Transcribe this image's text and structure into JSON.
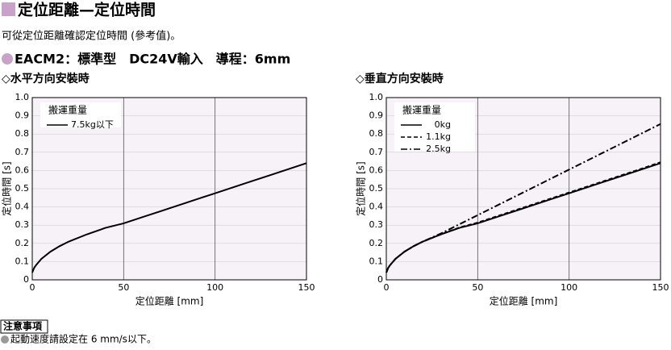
{
  "header": {
    "title": "定位距離—定位時間",
    "subtitle": "可從定位距離確認定位時間 (參考值)。",
    "model": "EACM2：標準型　DC24V輸入　導程：6mm"
  },
  "chart_data": [
    {
      "type": "line",
      "title": "◇水平方向安裝時",
      "xlabel": "定位距離 [mm]",
      "ylabel": "定位時間 [s]",
      "legend_title": "搬運重量",
      "grid": true,
      "x": [
        0,
        1,
        2,
        5,
        10,
        15,
        20,
        30,
        40,
        50,
        60,
        70,
        80,
        90,
        100,
        110,
        120,
        130,
        140,
        150
      ],
      "series": [
        {
          "name": "7.5kg以下",
          "color": "#000000",
          "dash": "solid",
          "values": [
            0.04,
            0.065,
            0.08,
            0.115,
            0.155,
            0.185,
            0.21,
            0.25,
            0.285,
            0.31,
            0.343,
            0.376,
            0.409,
            0.442,
            0.475,
            0.508,
            0.541,
            0.574,
            0.607,
            0.64
          ]
        }
      ],
      "xlim": [
        0,
        150
      ],
      "ylim": [
        0,
        1
      ],
      "xticks": [
        0,
        50,
        100,
        150
      ],
      "yticks": [
        0,
        0.1,
        0.2,
        0.3,
        0.4,
        0.5,
        0.6,
        0.7,
        0.8,
        0.9,
        {
          "value": 1,
          "label": "1.0"
        }
      ]
    },
    {
      "type": "line",
      "title": "◇垂直方向安裝時",
      "xlabel": "定位距離 [mm]",
      "ylabel": "定位時間 [s]",
      "legend_title": "搬運重量",
      "grid": true,
      "x": [
        0,
        1,
        2,
        5,
        10,
        15,
        20,
        30,
        40,
        50,
        60,
        70,
        80,
        90,
        100,
        110,
        120,
        130,
        140,
        150
      ],
      "series": [
        {
          "name": "0kg",
          "color": "#000000",
          "dash": "solid",
          "values": [
            0.04,
            0.065,
            0.08,
            0.115,
            0.155,
            0.185,
            0.21,
            0.25,
            0.285,
            0.31,
            0.343,
            0.376,
            0.409,
            0.442,
            0.475,
            0.508,
            0.541,
            0.574,
            0.607,
            0.64
          ]
        },
        {
          "name": "1.1kg",
          "color": "#000000",
          "dash": "dashed",
          "values": [
            0.04,
            0.065,
            0.08,
            0.115,
            0.155,
            0.185,
            0.21,
            0.25,
            0.287,
            0.314,
            0.347,
            0.38,
            0.413,
            0.446,
            0.479,
            0.512,
            0.545,
            0.578,
            0.611,
            0.645
          ]
        },
        {
          "name": "2.5kg",
          "color": "#000000",
          "dash": "dashdot",
          "values": [
            0.04,
            0.065,
            0.08,
            0.115,
            0.155,
            0.185,
            0.21,
            0.255,
            0.305,
            0.355,
            0.405,
            0.455,
            0.505,
            0.555,
            0.605,
            0.655,
            0.705,
            0.755,
            0.805,
            0.855
          ]
        }
      ],
      "xlim": [
        0,
        150
      ],
      "ylim": [
        0,
        1
      ],
      "xticks": [
        0,
        50,
        100,
        150
      ],
      "yticks": [
        0,
        0.1,
        0.2,
        0.3,
        0.4,
        0.5,
        0.6,
        0.7,
        0.8,
        0.9,
        {
          "value": 1,
          "label": "1.0"
        }
      ]
    }
  ],
  "footer": {
    "note_title": "注意事項",
    "note": "起動速度請設定在 6 mm/s以下。"
  }
}
